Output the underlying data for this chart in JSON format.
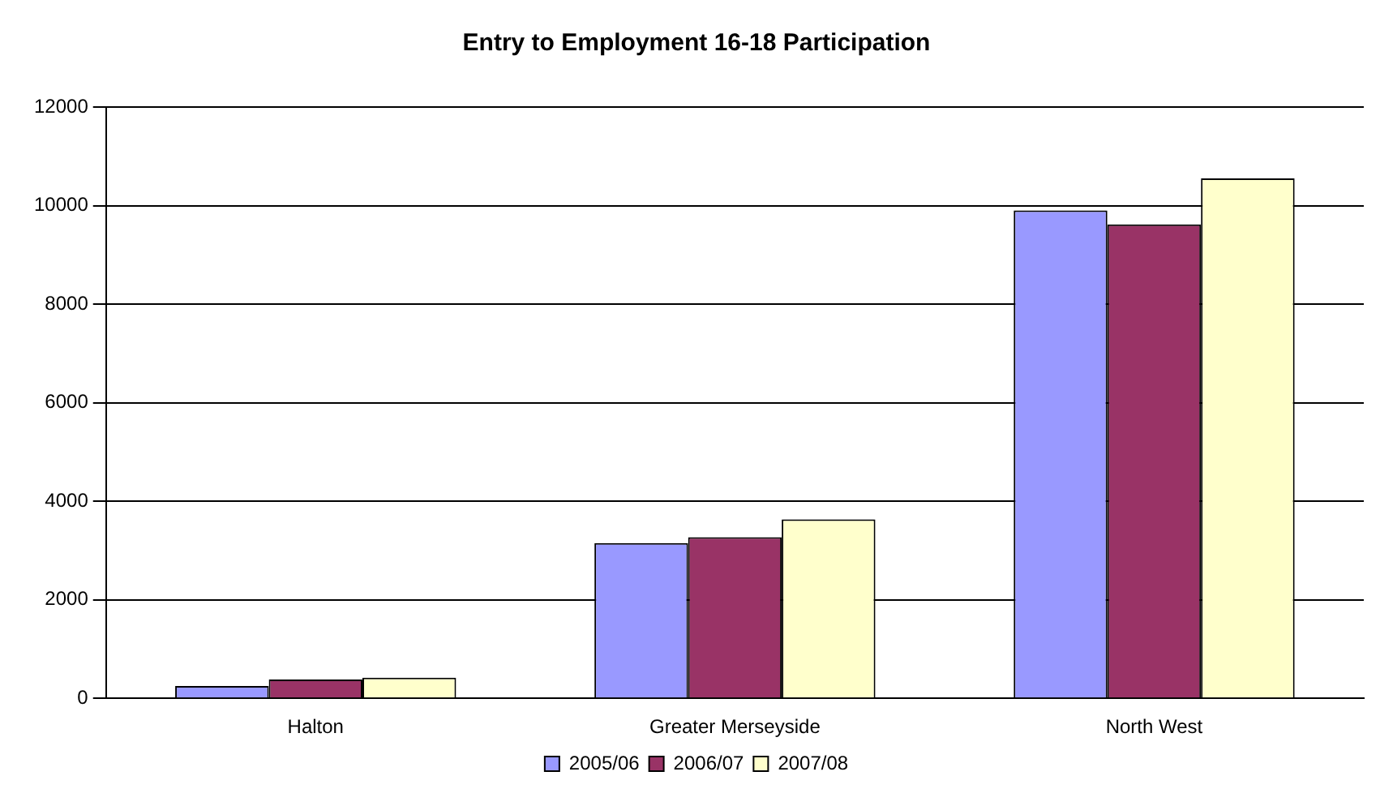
{
  "chart_data": {
    "type": "bar",
    "title": "Entry to Employment 16-18 Participation",
    "categories": [
      "Halton",
      "Greater Merseyside",
      "North West"
    ],
    "series": [
      {
        "name": "2005/06",
        "color": "#9999ff",
        "values": [
          250,
          3150,
          9900
        ]
      },
      {
        "name": "2006/07",
        "color": "#993366",
        "values": [
          380,
          3270,
          9620
        ]
      },
      {
        "name": "2007/08",
        "color": "#ffffcc",
        "values": [
          420,
          3630,
          10550
        ]
      }
    ],
    "ylim": [
      0,
      12000
    ],
    "yticks": [
      0,
      2000,
      4000,
      6000,
      8000,
      10000,
      12000
    ],
    "grid": "y",
    "legend": "bottom"
  }
}
